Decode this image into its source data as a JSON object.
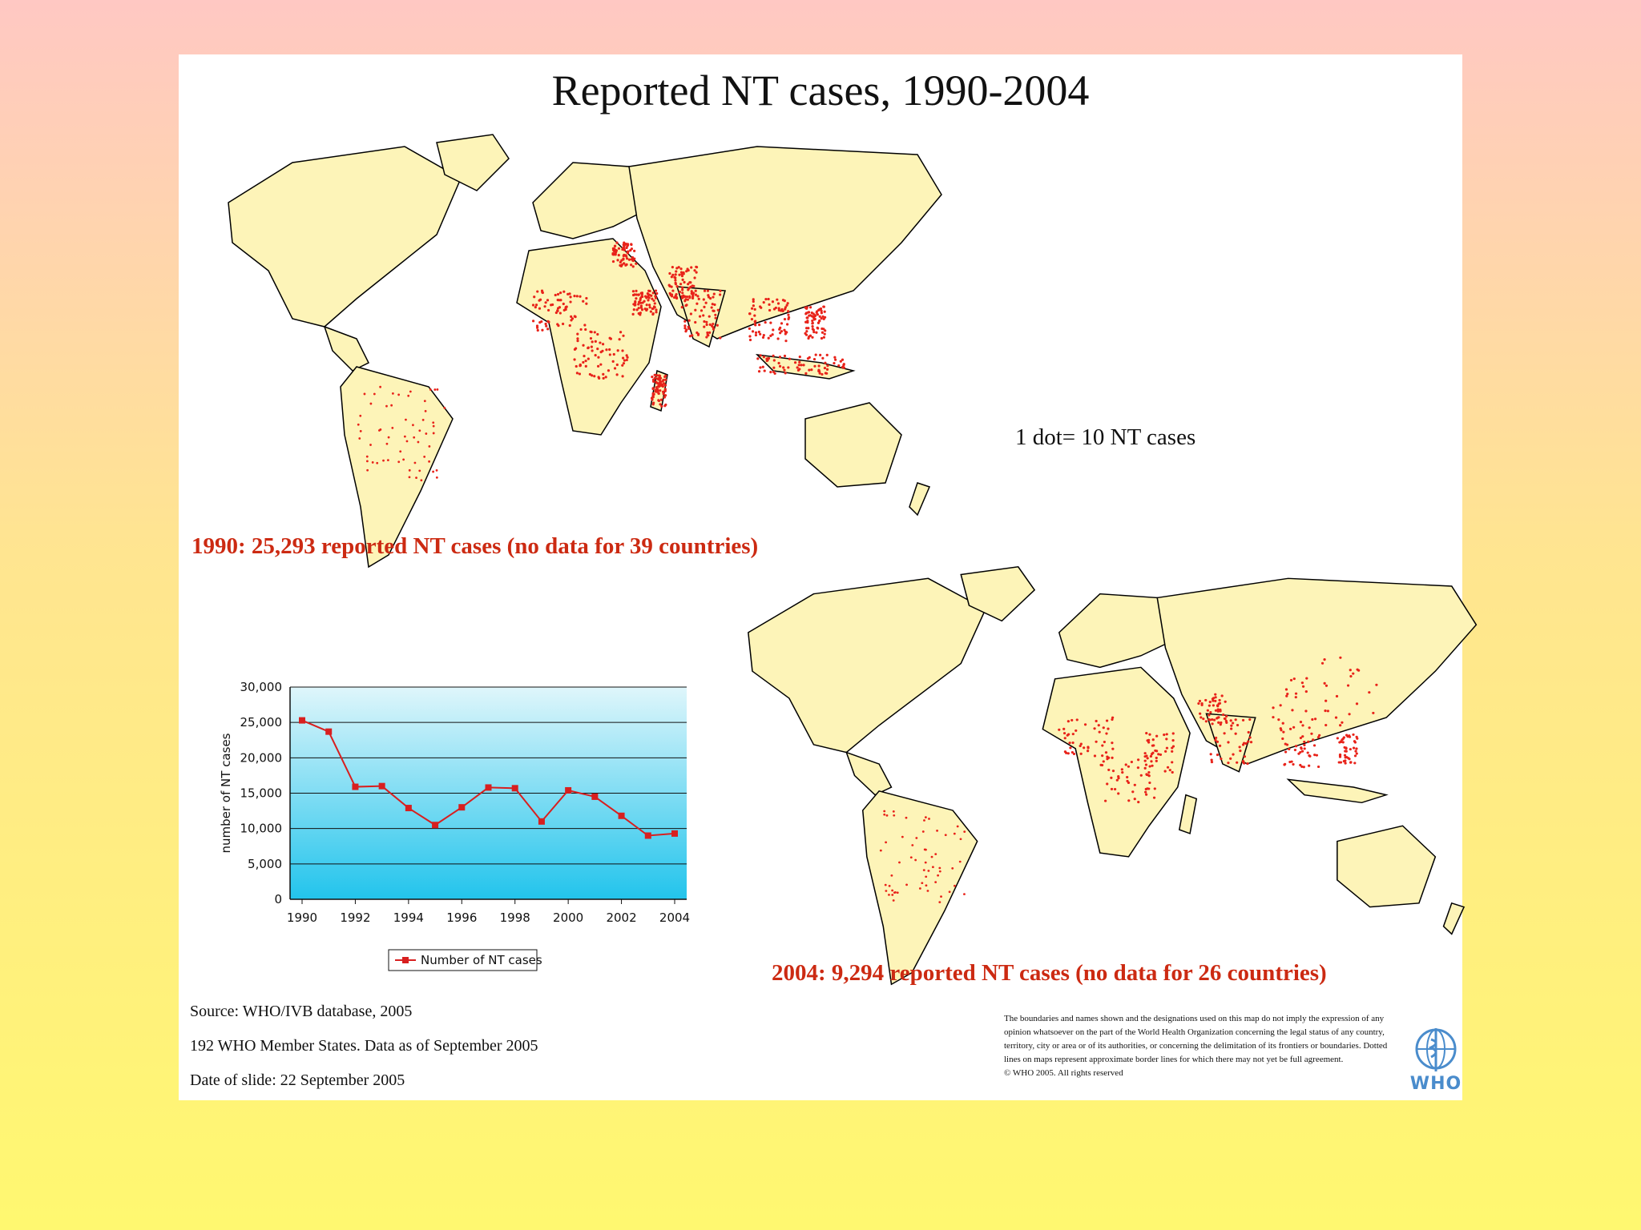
{
  "slide": {
    "title": "Reported NT cases, 1990-2004",
    "dot_legend": "1 dot= 10 NT cases",
    "caption_1990": "1990: 25,293 reported NT cases (no data for 39 countries)",
    "caption_2004": "2004: 9,294 reported NT cases (no data for 26 countries)",
    "source": "Source: WHO/IVB database, 2005",
    "members_note": "192 WHO Member States. Data as of September 2005",
    "date_note": "Date of slide: 22 September 2005",
    "disclaimer": "The boundaries and names shown and the designations used on this map do not imply the expression of any opinion whatsoever on the part of the World Health Organization concerning the legal status of any country, territory, city or area or of its authorities, or concerning the delimitation of its frontiers or boundaries. Dotted lines on maps represent approximate border lines for which there may not yet be full agreement.",
    "copyright": "© WHO 2005. All rights reserved",
    "who_logo_text": "WHO"
  },
  "colors": {
    "land": "#fdf4b8",
    "border": "#000000",
    "dots": "#e8231a",
    "caption": "#cc2a12",
    "line": "#d81f1f",
    "plot_bg_top": "#dff6fb",
    "plot_bg_bottom": "#22c4ec",
    "who_blue": "#4a8ccc"
  },
  "chart_data": {
    "type": "line",
    "title": "",
    "xlabel": "",
    "ylabel": "number of NT cases",
    "x": [
      1990,
      1991,
      1992,
      1993,
      1994,
      1995,
      1996,
      1997,
      1998,
      1999,
      2000,
      2001,
      2002,
      2003,
      2004
    ],
    "series": [
      {
        "name": "Number of NT cases",
        "values": [
          25293,
          23700,
          15900,
          16000,
          12900,
          10500,
          13000,
          15800,
          15700,
          11000,
          15400,
          14500,
          11800,
          9000,
          9294
        ]
      }
    ],
    "xticks": [
      "1990",
      "1992",
      "1994",
      "1996",
      "1998",
      "2000",
      "2002",
      "2004"
    ],
    "yticks": [
      "0",
      "5,000",
      "10,000",
      "15,000",
      "20,000",
      "25,000",
      "30,000"
    ],
    "ylim": [
      0,
      30000
    ],
    "xlim": [
      1990,
      2004
    ],
    "grid": true,
    "legend": "bottom"
  },
  "maps": [
    {
      "year": 1990,
      "hotspots": [
        "West Africa",
        "Central Africa",
        "Egypt",
        "Ethiopia",
        "India",
        "Pakistan",
        "Southeast Asia",
        "Indonesia",
        "Philippines",
        "Madagascar"
      ]
    },
    {
      "year": 2004,
      "hotspots": [
        "West Africa",
        "Central Africa",
        "East Africa",
        "Pakistan",
        "India",
        "China",
        "Southeast Asia",
        "Philippines"
      ]
    }
  ]
}
